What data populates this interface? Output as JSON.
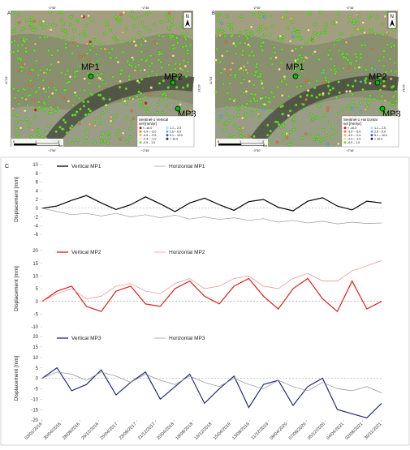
{
  "panels": {
    "a": {
      "letter": "A",
      "north": "N",
      "legend": {
        "title_line1": "Sentinel-1 Vertical",
        "title_line2": "vel [mm/yr]"
      }
    },
    "b": {
      "letter": "B",
      "north": "N",
      "legend": {
        "title_line1": "Sentinel-1 Horizontal",
        "title_line2": "vel [mm/yr]"
      }
    },
    "c": {
      "letter": "C"
    }
  },
  "map_common": {
    "top_ticks": [
      "~2°50'",
      "~2°46'"
    ],
    "bottom_ticks": [
      "~2°50'",
      "~2°46'"
    ],
    "left_tick": "41°34'",
    "right_tick": "41°34'",
    "points": [
      "MP1",
      "MP2",
      "MP3"
    ],
    "scale_labels": [
      "0",
      "1",
      "2"
    ],
    "scale_unit": "Km",
    "legend_classes": [
      {
        "label": "< -10.0",
        "color": "#d7191c"
      },
      {
        "label": "-9.9 – -5.0",
        "color": "#f46d43"
      },
      {
        "label": "-4.9 – -2.5",
        "color": "#fdae61"
      },
      {
        "label": "-2.4 – -1.0",
        "color": "#fee08b"
      },
      {
        "label": "-0.9 – 1.0",
        "color": "#66e02a"
      },
      {
        "label": "1.1 – 2.5",
        "color": "#a6e3f0"
      },
      {
        "label": "2.6 – 5.0",
        "color": "#4fb6e8"
      },
      {
        "label": "5.1 – 10.0",
        "color": "#2166ac"
      },
      {
        "label": "> 10.0",
        "color": "#08306b"
      }
    ]
  },
  "chart_data": {
    "type": "line",
    "x_tick_labels": [
      "03/01/2016",
      "30/04/2016",
      "28/08/2016",
      "26/12/2016",
      "25/04/2017",
      "23/08/2017",
      "21/12/2017",
      "20/04/2018",
      "18/08/2018",
      "16/12/2018",
      "15/04/2019",
      "13/08/2019",
      "11/12/2019",
      "09/04/2020",
      "07/08/2020",
      "05/12/2020",
      "04/04/2021",
      "02/08/2021",
      "30/11/2021"
    ],
    "subplots": [
      {
        "ylabel": "Displacement [mm]",
        "ylim": [
          -6,
          10
        ],
        "yticks": [
          -6,
          -4,
          -2,
          0,
          2,
          4,
          6,
          8,
          10
        ],
        "series": [
          {
            "name": "Vertical MP1",
            "color": "#000000",
            "style": "solid",
            "values": [
              0,
              0.5,
              1.8,
              2.9,
              1.2,
              -0.3,
              0.8,
              2.6,
              1.0,
              -0.8,
              1.2,
              2.3,
              0.8,
              -0.5,
              1.5,
              2.0,
              0.2,
              -0.6,
              1.6,
              2.4,
              0.5,
              -0.4,
              1.6,
              1.2
            ]
          },
          {
            "name": "Horizontal MP1",
            "color": "#9a9a9a",
            "style": "thin",
            "values": [
              0,
              -0.8,
              -1.5,
              -1.2,
              -1.8,
              -1.2,
              -2.0,
              -1.5,
              -2.2,
              -1.6,
              -2.5,
              -2.0,
              -2.6,
              -2.2,
              -2.8,
              -2.4,
              -3.2,
              -2.8,
              -3.4,
              -3.0,
              -3.6,
              -3.2,
              -3.5,
              -3.4
            ]
          }
        ]
      },
      {
        "ylabel": "Displacement [mm]",
        "ylim": [
          -10,
          20
        ],
        "yticks": [
          -10,
          -5,
          0,
          5,
          10,
          15,
          20
        ],
        "series": [
          {
            "name": "Vertical MP2",
            "color": "#e21a1a",
            "style": "solid",
            "values": [
              0,
              4,
              6,
              -2,
              -4,
              4,
              6,
              -1,
              -2,
              5,
              8,
              2,
              -1,
              6,
              9,
              2,
              -3,
              5,
              9,
              1,
              -4,
              8,
              -3,
              0
            ]
          },
          {
            "name": "Horizontal MP2",
            "color": "#f08a8a",
            "style": "thin",
            "values": [
              0,
              3,
              5,
              1,
              2,
              6,
              7,
              4,
              3,
              7,
              9,
              5,
              6,
              9,
              10,
              6,
              5,
              9,
              11,
              8,
              8,
              12,
              14,
              16
            ]
          }
        ]
      },
      {
        "ylabel": "Displacement [mm]",
        "ylim": [
          -20,
          20
        ],
        "yticks": [
          -20,
          -15,
          -10,
          -5,
          0,
          5,
          10,
          15,
          20
        ],
        "series": [
          {
            "name": "Vertical MP3",
            "color": "#1f2d7a",
            "style": "solid",
            "values": [
              0,
              5,
              -6,
              -3,
              4,
              -8,
              -2,
              3,
              -10,
              -4,
              2,
              -12,
              -5,
              1,
              -14,
              -3,
              -1,
              -13,
              -4,
              0,
              -15,
              -17,
              -19,
              -12
            ]
          },
          {
            "name": "Horizontal MP3",
            "color": "#8e8e8e",
            "style": "thin",
            "values": [
              0,
              3,
              2,
              -1,
              3,
              1,
              -2,
              2,
              -1,
              -3,
              1,
              -2,
              -4,
              0,
              -3,
              -5,
              -1,
              -4,
              -6,
              -2,
              -5,
              -6,
              -4,
              -7
            ]
          }
        ]
      }
    ]
  }
}
